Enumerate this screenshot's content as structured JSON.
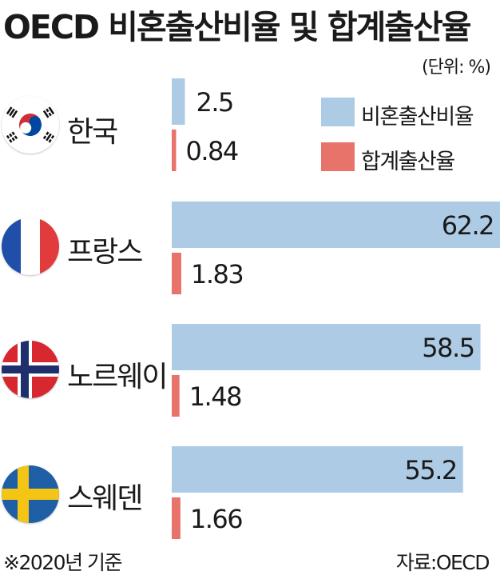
{
  "title": "OECD 비혼출산비율 및 합계출산율",
  "unit_label": "(단위: %)",
  "colors": {
    "nonmarital": "#aecbe6",
    "fertility": "#e8736a"
  },
  "legend": [
    {
      "label": "비혼출산비율",
      "color": "#aecbe6"
    },
    {
      "label": "합계출산율",
      "color": "#e8736a"
    }
  ],
  "countries": [
    {
      "name": "한국",
      "flag": "south-korea-flag-icon"
    },
    {
      "name": "프랑스",
      "flag": "france-flag-icon"
    },
    {
      "name": "노르웨이",
      "flag": "norway-flag-icon"
    },
    {
      "name": "스웨덴",
      "flag": "sweden-flag-icon"
    }
  ],
  "chart_data": {
    "type": "bar",
    "orientation": "horizontal",
    "categories": [
      "한국",
      "프랑스",
      "노르웨이",
      "스웨덴"
    ],
    "series": [
      {
        "name": "비혼출산비율",
        "values": [
          2.5,
          62.2,
          58.5,
          55.2
        ],
        "labels": [
          "2.5",
          "62.2",
          "58.5",
          "55.2"
        ]
      },
      {
        "name": "합계출산율",
        "values": [
          0.84,
          1.83,
          1.48,
          1.66
        ],
        "labels": [
          "0.84",
          "1.83",
          "1.48",
          "1.66"
        ]
      }
    ],
    "unit": "%",
    "legend_position": "top-right",
    "grid": false
  },
  "footer": {
    "note": "※2020년 기준",
    "source": "자료:OECD"
  }
}
